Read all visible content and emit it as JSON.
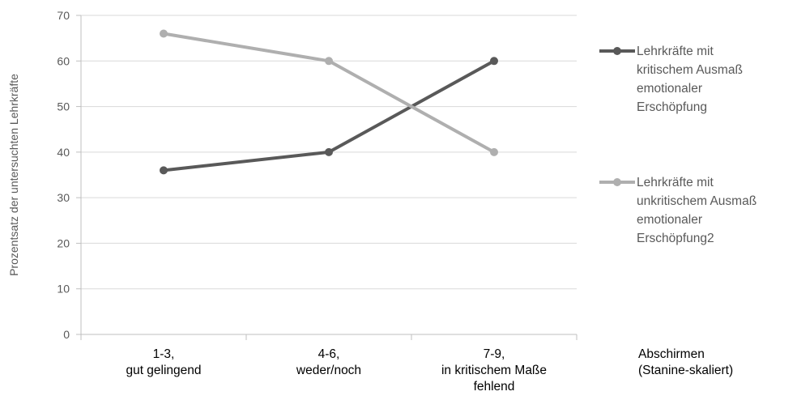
{
  "chart_data": {
    "type": "line",
    "categories": [
      [
        "1-3,",
        "gut gelingend"
      ],
      [
        "4-6,",
        "weder/noch"
      ],
      [
        "7-9,",
        "in kritischem Maße",
        "fehlend"
      ]
    ],
    "series": [
      {
        "name": [
          "Lehrkräfte mit",
          "kritischem Ausmaß",
          "emotionaler",
          "Erschöpfung"
        ],
        "values": [
          36,
          40,
          60
        ],
        "color": "#595959"
      },
      {
        "name": [
          "Lehrkräfte mit",
          "unkritischem Ausmaß",
          "emotionaler",
          "Erschöpfung2"
        ],
        "values": [
          66,
          60,
          40
        ],
        "color": "#afafaf"
      }
    ],
    "ylabel": "Prozentsatz der untersuchten Lehrkräfte",
    "xlabel": [
      "Abschirmen",
      "(Stanine-skaliert)"
    ],
    "ylim": [
      0,
      70
    ],
    "yticks": [
      0,
      10,
      20,
      30,
      40,
      50,
      60,
      70
    ],
    "grid": true,
    "legend": "right"
  }
}
